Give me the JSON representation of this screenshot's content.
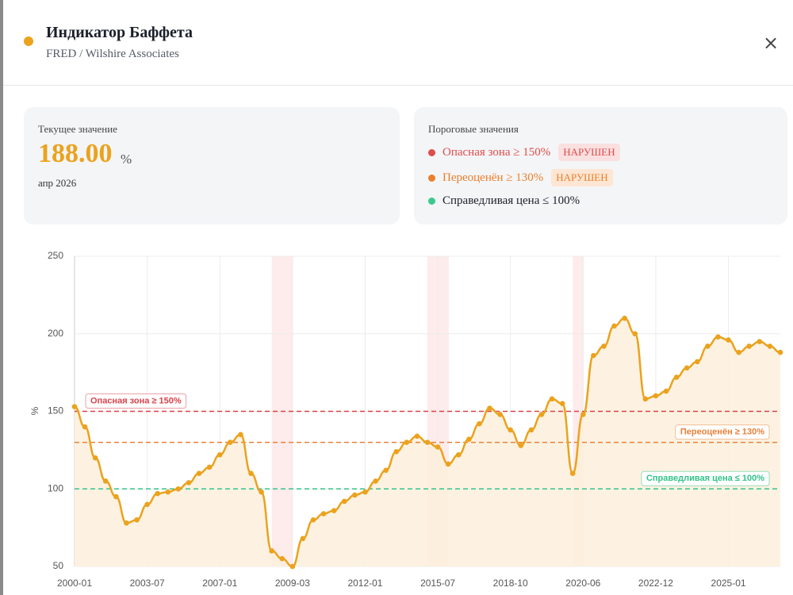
{
  "header": {
    "title": "Индикатор Баффета",
    "subtitle": "FRED / Wilshire Associates",
    "close": "×"
  },
  "current": {
    "label": "Текущее значение",
    "value": "188.00",
    "unit": "%",
    "date": "апр 2026"
  },
  "thresholds_card": {
    "title": "Пороговые значения",
    "items": [
      {
        "text": "Опасная зона ≥ 150%",
        "badge": "НАРУШЕН",
        "color": "#e04b4b"
      },
      {
        "text": "Переоценён ≥ 130%",
        "badge": "НАРУШЕН",
        "color": "#ec7f2a"
      },
      {
        "text": "Справедливая цена ≤ 100%",
        "color": "#3cc98f"
      }
    ]
  },
  "chart_data": {
    "type": "line",
    "ylabel": "%",
    "color": "#eba21d",
    "categories": [
      "2000-01",
      null,
      null,
      null,
      null,
      null,
      null,
      "2003-07",
      null,
      null,
      null,
      null,
      null,
      null,
      "2007-01",
      null,
      null,
      null,
      null,
      null,
      null,
      "2009-03",
      null,
      null,
      null,
      null,
      null,
      null,
      "2012-01",
      null,
      null,
      null,
      null,
      null,
      null,
      "2015-07",
      null,
      null,
      null,
      null,
      null,
      null,
      "2018-10",
      null,
      null,
      null,
      null,
      null,
      null,
      "2020-06",
      null,
      null,
      null,
      null,
      null,
      null,
      "2022-12",
      null,
      null,
      null,
      null,
      null,
      null,
      "2025-01",
      null,
      null,
      null,
      null,
      null
    ],
    "values": [
      153,
      140,
      120,
      105,
      95,
      78,
      80,
      90,
      97,
      98,
      100,
      104,
      110,
      114,
      122,
      130,
      135,
      110,
      98,
      60,
      55,
      50,
      68,
      80,
      84,
      86,
      92,
      96,
      98,
      105,
      112,
      124,
      130,
      134,
      130,
      127,
      116,
      122,
      132,
      142,
      152,
      148,
      138,
      128,
      138,
      148,
      158,
      155,
      110,
      148,
      186,
      192,
      205,
      210,
      200,
      158,
      160,
      163,
      172,
      178,
      182,
      192,
      198,
      196,
      188,
      192,
      195,
      192,
      188
    ],
    "ylim": [
      50,
      250
    ],
    "yticks": [
      50,
      100,
      150,
      200,
      250
    ],
    "grid": true,
    "shaded_ranges": [
      [
        19,
        21
      ],
      [
        34,
        36
      ],
      [
        48,
        49
      ]
    ],
    "thresholds": [
      {
        "value": 150,
        "label": "Опасная зона ≥ 150%",
        "color": "#d9434b"
      },
      {
        "value": 130,
        "label": "Переоценён ≥ 130%",
        "color": "#e8813a"
      },
      {
        "value": 100,
        "label": "Справедливая цена ≤ 100%",
        "color": "#34c28a"
      }
    ]
  }
}
